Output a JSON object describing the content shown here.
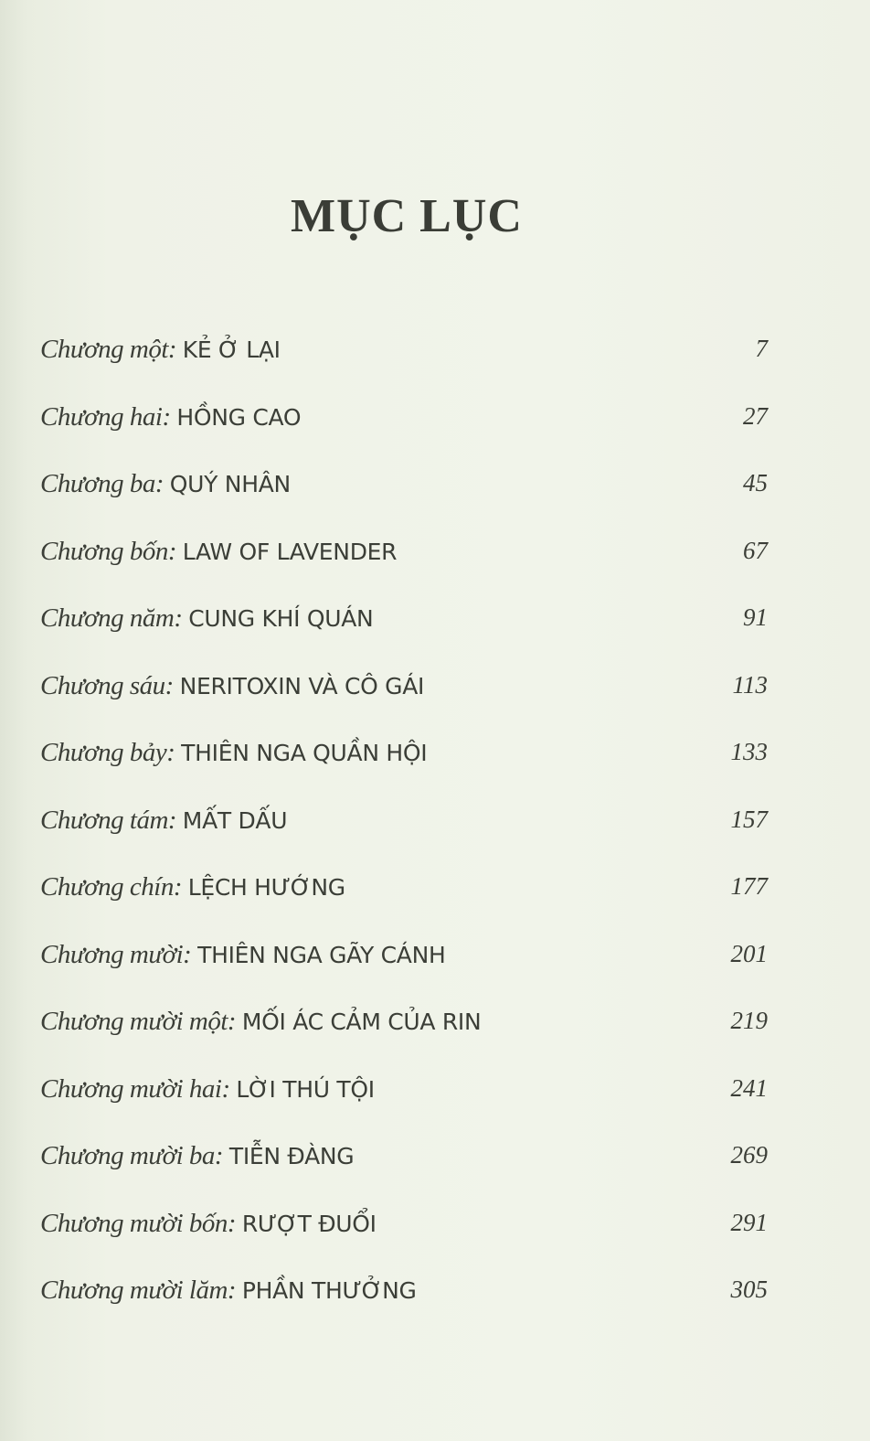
{
  "page_title": "MỤC LỤC",
  "entries": [
    {
      "chapter": "Chương một:",
      "name": "KẺ Ở LẠI",
      "page": "7"
    },
    {
      "chapter": "Chương hai:",
      "name": "HỒNG CAO",
      "page": "27"
    },
    {
      "chapter": "Chương ba:",
      "name": "QUÝ NHÂN",
      "page": "45"
    },
    {
      "chapter": "Chương bốn:",
      "name": "LAW OF LAVENDER",
      "page": "67"
    },
    {
      "chapter": "Chương năm:",
      "name": "CUNG KHÍ QUÁN",
      "page": "91"
    },
    {
      "chapter": "Chương sáu:",
      "name": "NERITOXIN VÀ CÔ GÁI",
      "page": "113"
    },
    {
      "chapter": "Chương bảy:",
      "name": "THIÊN NGA QUẦN HỘI",
      "page": "133"
    },
    {
      "chapter": "Chương tám:",
      "name": "MẤT DẤU",
      "page": "157"
    },
    {
      "chapter": "Chương chín:",
      "name": "LỆCH HƯỚNG",
      "page": "177"
    },
    {
      "chapter": "Chương mười:",
      "name": "THIÊN NGA GÃY CÁNH",
      "page": "201"
    },
    {
      "chapter": "Chương mười một:",
      "name": "MỐI ÁC CẢM CỦA RIN",
      "page": "219"
    },
    {
      "chapter": "Chương mười hai:",
      "name": "LỜI THÚ TỘI",
      "page": "241"
    },
    {
      "chapter": "Chương mười ba:",
      "name": "TIỄN ĐÀNG",
      "page": "269"
    },
    {
      "chapter": "Chương mười bốn:",
      "name": "RƯỢT ĐUỔI",
      "page": "291"
    },
    {
      "chapter": "Chương mười lăm:",
      "name": "PHẦN THƯỞNG",
      "page": "305"
    }
  ]
}
